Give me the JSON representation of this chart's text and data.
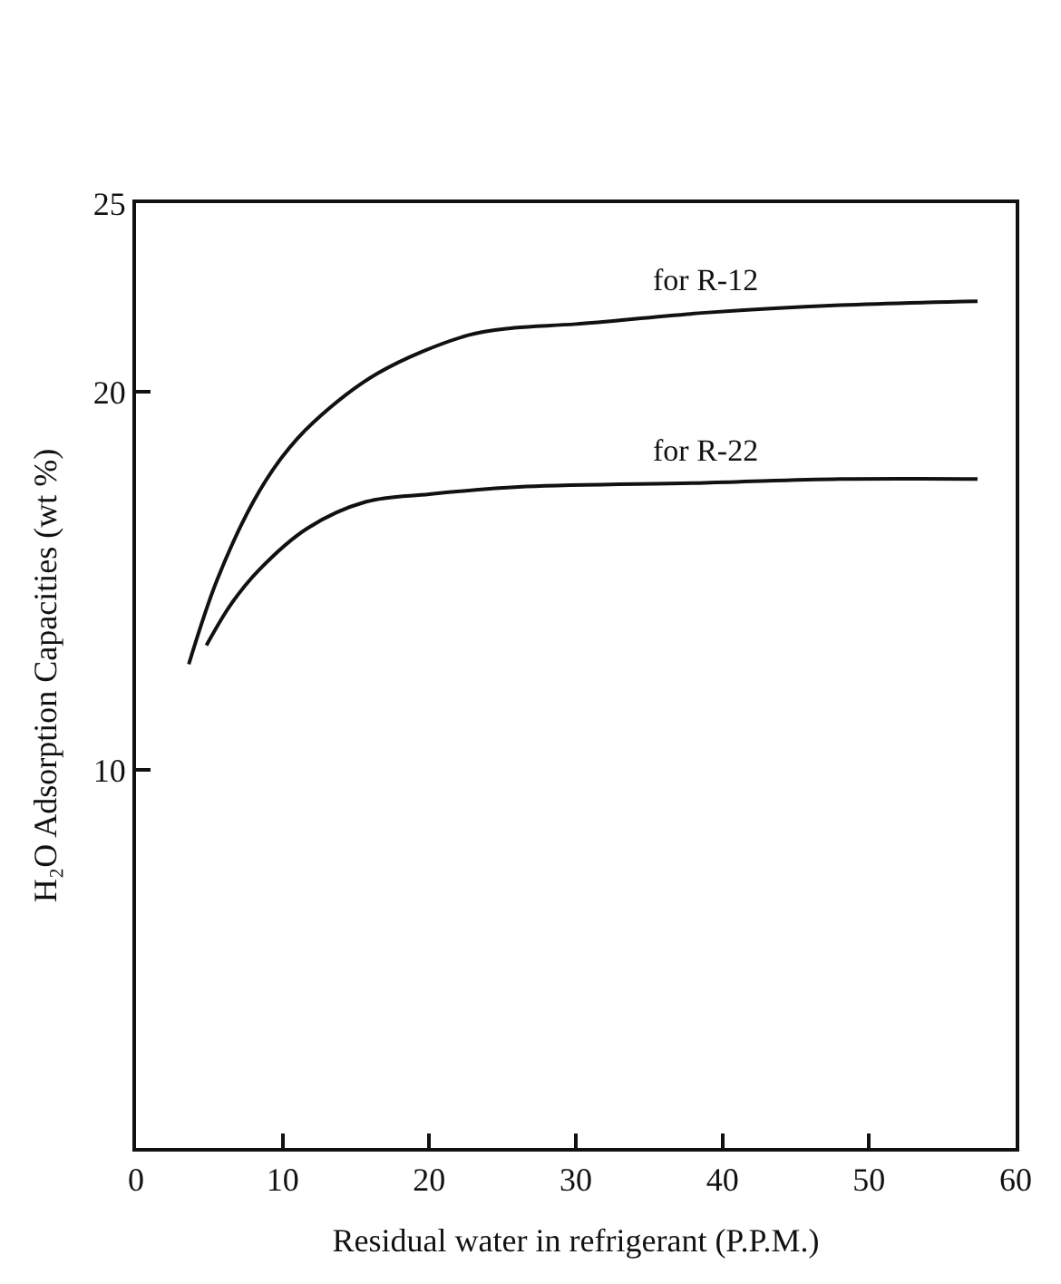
{
  "chart_data": {
    "type": "line",
    "xlabel": "Residual water in refrigerant (P.P.M.)",
    "ylabel": "H₂O Adsorption Capacities (wt %)",
    "xlim": [
      0,
      60
    ],
    "xticks": [
      0,
      10,
      20,
      30,
      40,
      50,
      60
    ],
    "ylim": [
      0,
      25
    ],
    "yticks": [
      10,
      20,
      25
    ],
    "legend": false,
    "marker": "none",
    "line_style": "solid",
    "series": [
      {
        "name": "for R-12",
        "color": "#111111",
        "x": [
          3.6,
          5.5,
          8.0,
          10.0,
          12.1,
          16.5,
          22.6,
          25.8,
          30.0,
          38.8,
          48.0,
          57.4
        ],
        "values": [
          12.8,
          15.0,
          17.1,
          18.3,
          19.2,
          20.5,
          21.5,
          21.7,
          21.8,
          22.1,
          22.3,
          22.4
        ]
      },
      {
        "name": "for R-22",
        "color": "#111111",
        "x": [
          4.8,
          6.5,
          8.4,
          11.7,
          15.7,
          20.0,
          26.6,
          38.8,
          48.0,
          57.4
        ],
        "values": [
          13.3,
          14.4,
          15.3,
          16.4,
          17.1,
          17.3,
          17.5,
          17.6,
          17.7,
          17.7
        ]
      }
    ]
  }
}
